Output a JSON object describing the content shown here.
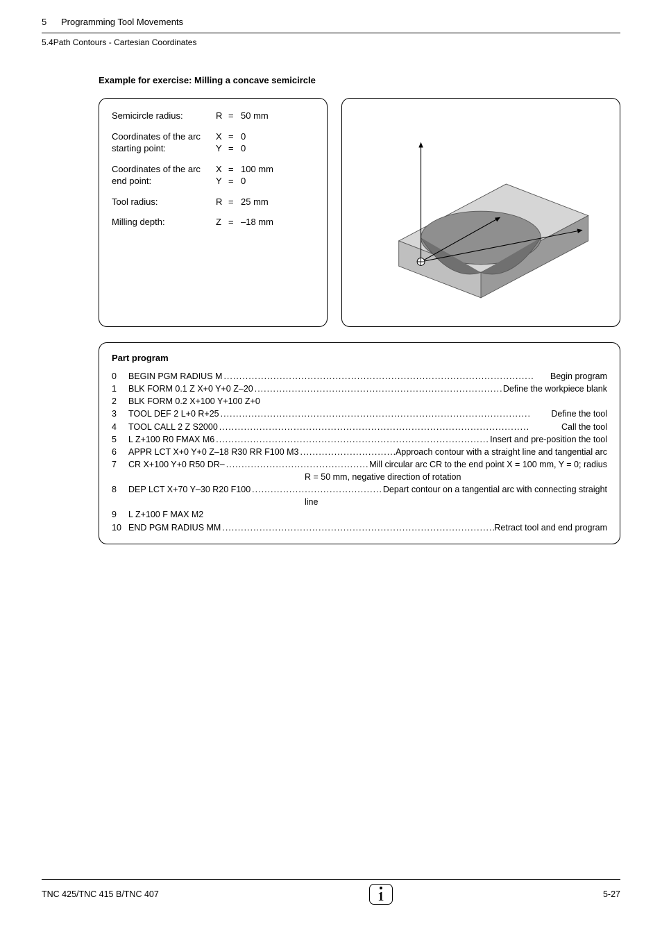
{
  "header": {
    "chapter_num": "5",
    "chapter_title": "Programming Tool Movements",
    "section_num": "5.4",
    "section_title": "Path Contours - Cartesian Coordinates"
  },
  "example_title": "Example for exercise:  Milling a concave semicircle",
  "params": [
    {
      "label": "Semicircle radius:",
      "lines": [
        {
          "sym": "R",
          "eq": "=",
          "num": "  50 mm"
        }
      ]
    },
    {
      "label": "Coordinates of the arc starting point:",
      "lines": [
        {
          "sym": "X",
          "eq": "=",
          "num": "    0"
        },
        {
          "sym": "Y",
          "eq": "=",
          "num": "    0"
        }
      ]
    },
    {
      "label": "Coordinates of the arc end point:",
      "lines": [
        {
          "sym": "X",
          "eq": "=",
          "num": "100 mm"
        },
        {
          "sym": "Y",
          "eq": "=",
          "num": "    0"
        }
      ]
    },
    {
      "label": "Tool radius:",
      "lines": [
        {
          "sym": "R",
          "eq": "=",
          "num": "  25 mm"
        }
      ]
    },
    {
      "label": "Milling depth:",
      "lines": [
        {
          "sym": "Z",
          "eq": "=",
          "num": "–18 mm"
        }
      ]
    }
  ],
  "illustration": {
    "axis_color": "#000000",
    "object_stroke": "#595959",
    "shade_light": "#c9c9c9",
    "shade_mid": "#9a9a9a",
    "shade_dark": "#6f6f6f",
    "bg": "#ffffff"
  },
  "program": {
    "title": "Part program",
    "lines": [
      {
        "n": "0",
        "code": "BEGIN PGM RADIUS M",
        "dots": true,
        "desc": "Begin program"
      },
      {
        "n": "1",
        "code": "BLK FORM 0.1 Z X+0 Y+0 Z–20",
        "dots": true,
        "desc": "Define the workpiece blank"
      },
      {
        "n": "2",
        "code": "BLK FORM 0.2 X+100 Y+100 Z+0",
        "dots": false,
        "desc": ""
      },
      {
        "n": "3",
        "code": "TOOL DEF 2 L+0 R+25",
        "dots": true,
        "desc": "Define the tool"
      },
      {
        "n": "4",
        "code": "TOOL CALL 2 Z S2000",
        "dots": true,
        "desc": "Call the tool"
      },
      {
        "n": "5",
        "code": "L Z+100 R0 FMAX M6",
        "dots": true,
        "desc": "Insert and pre-position the tool"
      },
      {
        "n": "6",
        "code": "APPR LCT X+0 Y+0 Z–18 R30 RR F100 M3",
        "dots": true,
        "desc": "Approach contour with a straight line and tangential arc"
      },
      {
        "n": "7",
        "code": "CR X+100 Y+0 R50 DR–",
        "dots": true,
        "desc": "Mill circular arc CR to the end point X = 100 mm, Y = 0; radius",
        "cont": "R = 50 mm, negative direction of rotation"
      },
      {
        "n": "8",
        "code": "DEP LCT X+70 Y–30 R20 F100",
        "dots": true,
        "desc": "Depart contour on a tangential arc with connecting straight",
        "cont": "line"
      },
      {
        "n": "9",
        "code": "L Z+100 F MAX M2",
        "dots": false,
        "desc": ""
      },
      {
        "n": "10",
        "code": "END PGM RADIUS MM",
        "dots": true,
        "desc": "Retract tool and end program"
      }
    ]
  },
  "footer": {
    "left": "TNC 425/TNC 415 B/TNC 407",
    "right": "5-27"
  }
}
